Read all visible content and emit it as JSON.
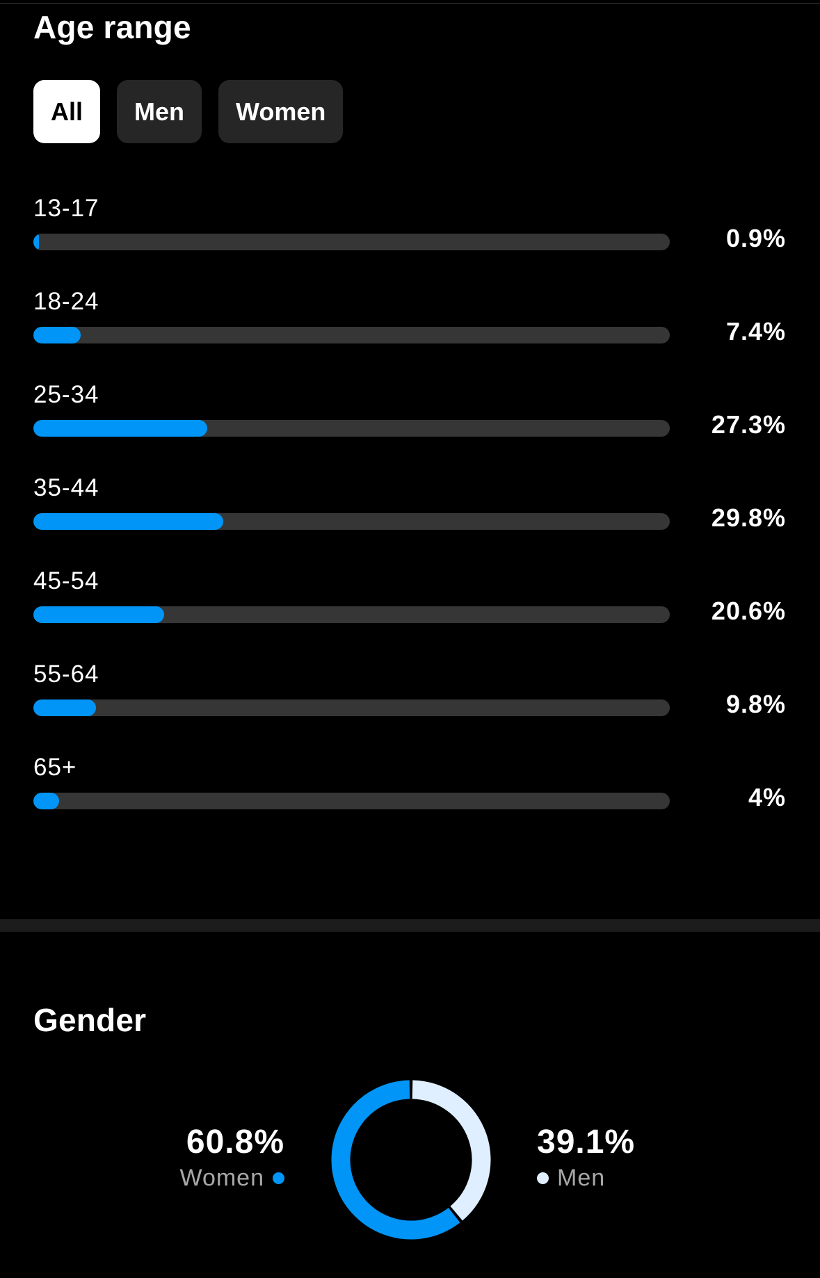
{
  "age_range": {
    "title": "Age range",
    "filters": [
      {
        "label": "All",
        "active": true
      },
      {
        "label": "Men",
        "active": false
      },
      {
        "label": "Women",
        "active": false
      }
    ],
    "rows": [
      {
        "label": "13-17",
        "value_text": "0.9%",
        "value": 0.9
      },
      {
        "label": "18-24",
        "value_text": "7.4%",
        "value": 7.4
      },
      {
        "label": "25-34",
        "value_text": "27.3%",
        "value": 27.3
      },
      {
        "label": "35-44",
        "value_text": "29.8%",
        "value": 29.8
      },
      {
        "label": "45-54",
        "value_text": "20.6%",
        "value": 20.6
      },
      {
        "label": "55-64",
        "value_text": "9.8%",
        "value": 9.8
      },
      {
        "label": "65+",
        "value_text": "4%",
        "value": 4
      }
    ]
  },
  "gender": {
    "title": "Gender",
    "women": {
      "value_text": "60.8%",
      "label": "Women",
      "color": "#0095f6"
    },
    "men": {
      "value_text": "39.1%",
      "label": "Men",
      "color": "#dfefff"
    }
  },
  "colors": {
    "accent": "#0095f6",
    "track": "#363636",
    "pill_bg": "#262626",
    "pill_active_bg": "#ffffff"
  },
  "chart_data": [
    {
      "type": "bar",
      "title": "Age range",
      "categories": [
        "13-17",
        "18-24",
        "25-34",
        "35-44",
        "45-54",
        "55-64",
        "65+"
      ],
      "values": [
        0.9,
        7.4,
        27.3,
        29.8,
        20.6,
        9.8,
        4
      ],
      "xlabel": "",
      "ylabel": "",
      "ylim": [
        0,
        100
      ],
      "orientation": "horizontal"
    },
    {
      "type": "pie",
      "title": "Gender",
      "categories": [
        "Women",
        "Men"
      ],
      "values": [
        60.8,
        39.1
      ]
    }
  ]
}
